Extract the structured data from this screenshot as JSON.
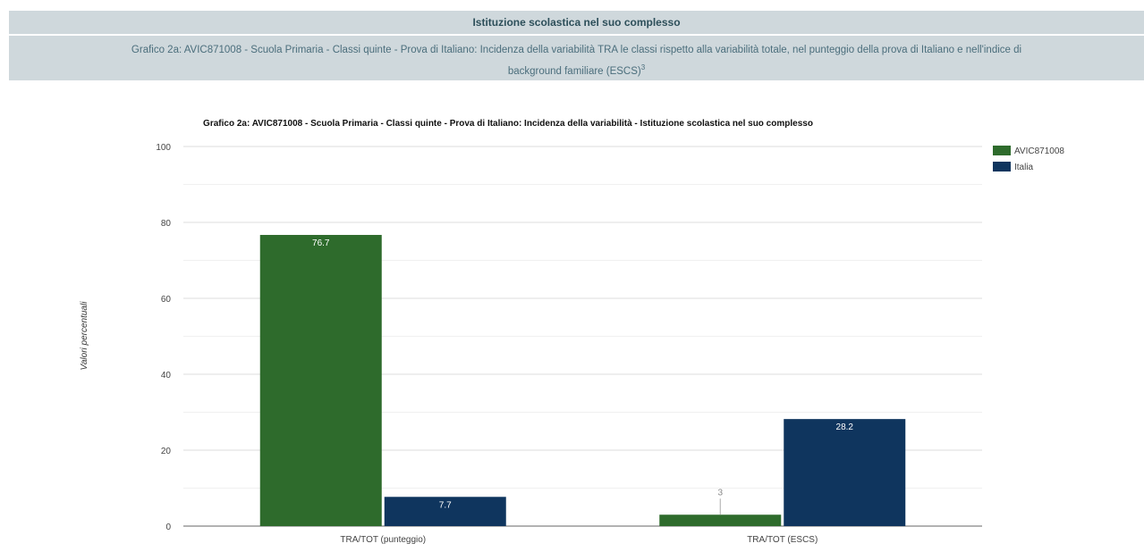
{
  "header": {
    "title": "Istituzione scolastica nel suo complesso",
    "subtitle_line1": "Grafico 2a: AVIC871008 - Scuola Primaria - Classi quinte - Prova di Italiano: Incidenza della variabilità TRA le classi rispetto alla variabilità totale, nel punteggio della prova di Italiano e nell'indice di",
    "subtitle_line2": "background familiare (ESCS)",
    "subtitle_sup": "3"
  },
  "chart_data": {
    "type": "bar",
    "title": "Grafico 2a: AVIC871008 - Scuola Primaria - Classi quinte - Prova di Italiano: Incidenza della variabilità - Istituzione scolastica nel suo complesso",
    "ylabel": "Valori percentuali",
    "xlabel": "",
    "categories": [
      "TRA/TOT (punteggio)",
      "TRA/TOT (ESCS)"
    ],
    "series": [
      {
        "name": "AVIC871008",
        "color": "#2e6b2c",
        "values": [
          76.7,
          3
        ],
        "labels": [
          "76.7",
          "3"
        ]
      },
      {
        "name": "Italia",
        "color": "#0f355e",
        "values": [
          7.7,
          28.2
        ],
        "labels": [
          "7.7",
          "28.2"
        ]
      }
    ],
    "ylim": [
      0,
      100
    ],
    "yticks": [
      0,
      20,
      40,
      60,
      80,
      100
    ],
    "grid": true,
    "legend": "top-right"
  }
}
